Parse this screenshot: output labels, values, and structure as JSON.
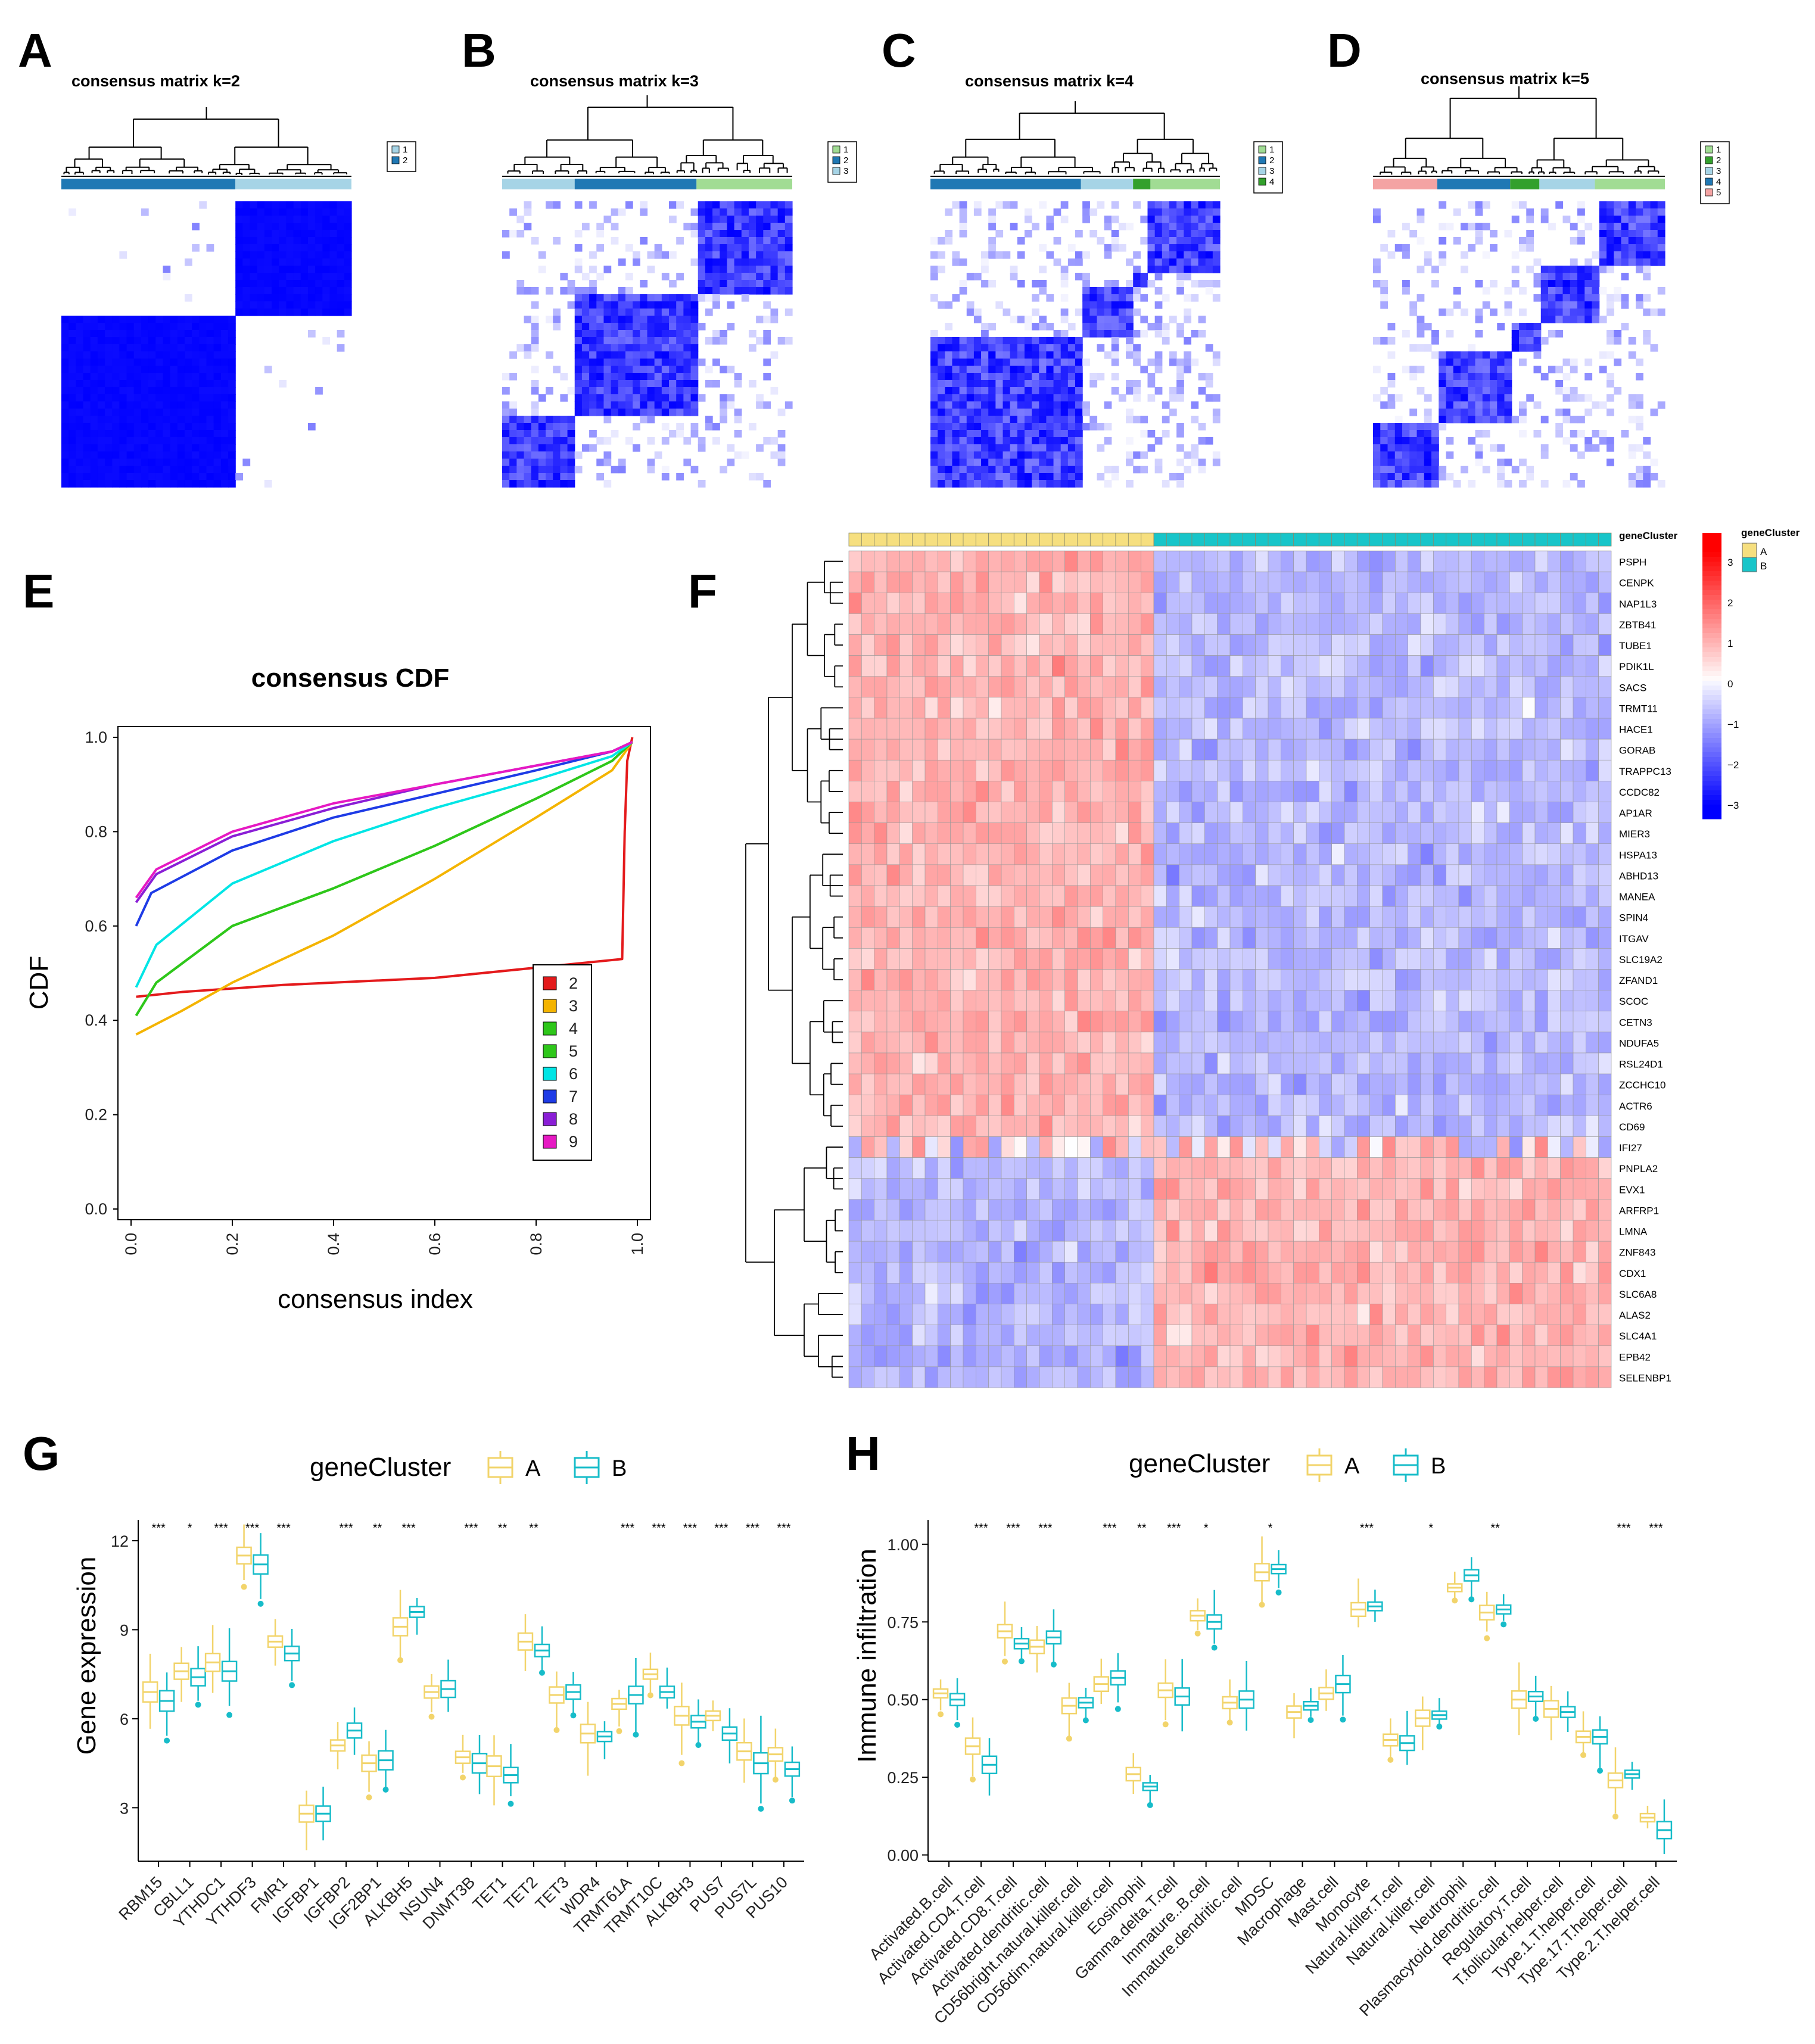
{
  "panels": {
    "A": "A",
    "B": "B",
    "C": "C",
    "D": "D",
    "E": "E",
    "F": "F",
    "G": "G",
    "H": "H"
  },
  "chart_data": [
    {
      "panel": "A",
      "type": "heatmap",
      "title": "consensus matrix k=2",
      "legend": [
        "1",
        "2"
      ],
      "cluster_colors": [
        "#a6d4e6",
        "#1f78b4"
      ],
      "cluster_sizes": [
        140,
        90
      ],
      "cluster_order": [
        2,
        1
      ]
    },
    {
      "panel": "B",
      "type": "heatmap",
      "title": "consensus matrix k=3",
      "legend": [
        "1",
        "2",
        "3"
      ],
      "cluster_colors": [
        "#a1dc94",
        "#1f78b4",
        "#a6d4e6"
      ],
      "cluster_order": [
        3,
        2,
        1
      ]
    },
    {
      "panel": "C",
      "type": "heatmap",
      "title": "consensus matrix k=4",
      "legend": [
        "1",
        "2",
        "3",
        "4"
      ],
      "cluster_colors": [
        "#a1dc94",
        "#1f78b4",
        "#a6d4e6",
        "#33a02c"
      ],
      "cluster_order": [
        2,
        3,
        4,
        1
      ]
    },
    {
      "panel": "D",
      "type": "heatmap",
      "title": "consensus matrix k=5",
      "legend": [
        "1",
        "2",
        "3",
        "4",
        "5"
      ],
      "cluster_colors": [
        "#a1dc94",
        "#33a02c",
        "#a6d4e6",
        "#1f78b4",
        "#f4a3a3"
      ],
      "cluster_order": [
        5,
        4,
        2,
        3,
        1
      ]
    },
    {
      "panel": "E",
      "type": "line",
      "title": "consensus CDF",
      "xlabel": "consensus index",
      "ylabel": "CDF",
      "xlim": [
        0,
        1
      ],
      "ylim": [
        0,
        1
      ],
      "xticks": [
        "0.0",
        "0.2",
        "0.4",
        "0.6",
        "0.8",
        "1.0"
      ],
      "yticks": [
        "0.0",
        "0.2",
        "0.4",
        "0.6",
        "0.8",
        "1.0"
      ],
      "legend_position": "bottom-right",
      "series": [
        {
          "name": "2",
          "color": "#e41a1c",
          "x": [
            0.01,
            0.1,
            0.3,
            0.6,
            0.97,
            0.975,
            0.98,
            0.99
          ],
          "y": [
            0.45,
            0.46,
            0.475,
            0.49,
            0.53,
            0.8,
            0.95,
            1.0
          ]
        },
        {
          "name": "3",
          "color": "#f4b400",
          "x": [
            0.01,
            0.1,
            0.2,
            0.4,
            0.6,
            0.8,
            0.95,
            0.99
          ],
          "y": [
            0.37,
            0.42,
            0.48,
            0.58,
            0.7,
            0.83,
            0.93,
            0.99
          ]
        },
        {
          "name": "4",
          "color": "#2ec71a",
          "x": [
            0.01,
            0.05,
            0.2,
            0.4,
            0.6,
            0.8,
            0.95,
            0.99
          ],
          "y": [
            0.41,
            0.48,
            0.6,
            0.68,
            0.77,
            0.87,
            0.95,
            0.99
          ]
        },
        {
          "name": "5",
          "color": "#2ec71a",
          "x": [
            0.01,
            0.05,
            0.2,
            0.4,
            0.6,
            0.8,
            0.95,
            0.99
          ],
          "y": [
            0.41,
            0.48,
            0.6,
            0.68,
            0.77,
            0.87,
            0.95,
            0.99
          ]
        },
        {
          "name": "6",
          "color": "#00e5e5",
          "x": [
            0.01,
            0.05,
            0.2,
            0.4,
            0.6,
            0.8,
            0.95,
            0.99
          ],
          "y": [
            0.47,
            0.56,
            0.69,
            0.78,
            0.85,
            0.91,
            0.96,
            0.99
          ]
        },
        {
          "name": "7",
          "color": "#1e3be6",
          "x": [
            0.01,
            0.04,
            0.2,
            0.4,
            0.6,
            0.8,
            0.95,
            0.99
          ],
          "y": [
            0.6,
            0.67,
            0.76,
            0.83,
            0.88,
            0.93,
            0.97,
            0.99
          ]
        },
        {
          "name": "8",
          "color": "#8a1ed6",
          "x": [
            0.01,
            0.05,
            0.2,
            0.4,
            0.6,
            0.8,
            0.95,
            0.99
          ],
          "y": [
            0.65,
            0.71,
            0.79,
            0.85,
            0.9,
            0.94,
            0.97,
            0.99
          ]
        },
        {
          "name": "9",
          "color": "#e619c3",
          "x": [
            0.01,
            0.05,
            0.2,
            0.4,
            0.6,
            0.8,
            0.95,
            0.99
          ],
          "y": [
            0.66,
            0.72,
            0.8,
            0.86,
            0.9,
            0.94,
            0.97,
            0.99
          ]
        }
      ]
    },
    {
      "panel": "F",
      "type": "heatmap",
      "legend_title": "geneCluster",
      "cluster_labels": [
        "A",
        "B"
      ],
      "cluster_colors": [
        "#f6df7f",
        "#18c5c9"
      ],
      "scale_ticks": [
        "3",
        "2",
        "1",
        "0",
        "−1",
        "−2",
        "−3"
      ],
      "genes_up_in_A": [
        "PSPH",
        "CENPK",
        "NAP1L3",
        "ZBTB41",
        "TUBE1",
        "PDIK1L",
        "SACS",
        "TRMT11",
        "HACE1",
        "GORAB",
        "TRAPPC13",
        "CCDC82",
        "AP1AR",
        "MIER3",
        "HSPA13",
        "ABHD13",
        "MANEA",
        "SPIN4",
        "ITGAV",
        "SLC19A2",
        "ZFAND1",
        "SCOC",
        "CETN3",
        "NDUFA5",
        "RSL24D1",
        "ZCCHC10",
        "ACTR6",
        "CD69"
      ],
      "genes_up_in_B": [
        "IFI27",
        "PNPLA2",
        "EVX1",
        "ARFRP1",
        "LMNA",
        "ZNF843",
        "CDX1",
        "SLC6A8",
        "ALAS2",
        "SLC4A1",
        "EPB42",
        "SELENBP1"
      ],
      "n_samples_A": 24,
      "n_samples_B": 36
    },
    {
      "panel": "G",
      "type": "box",
      "ylabel": "Gene expression",
      "legend_title": "geneCluster",
      "legend": [
        "A",
        "B"
      ],
      "colors": [
        "#f2d46b",
        "#17bcc9"
      ],
      "ylim": [
        1.2,
        12.3
      ],
      "yticks": [
        "3",
        "6",
        "9",
        "12"
      ],
      "categories": [
        "RBM15",
        "CBLL1",
        "YTHDC1",
        "YTHDF3",
        "FMR1",
        "IGFBP1",
        "IGFBP2",
        "IGF2BP1",
        "ALKBH5",
        "NSUN4",
        "DNMT3B",
        "TET1",
        "TET2",
        "TET3",
        "WDR4",
        "TRMT61A",
        "TRMT10C",
        "ALKBH3",
        "PUS7",
        "PUS7L",
        "PUS10"
      ],
      "significance": [
        "***",
        "*",
        "***",
        "***",
        "***",
        "",
        "***",
        "**",
        "***",
        "",
        "***",
        "**",
        "**",
        "",
        "",
        "***",
        "***",
        "***",
        "***",
        "***",
        "***"
      ],
      "medians_A": [
        6.9,
        7.6,
        7.9,
        11.5,
        8.6,
        2.8,
        5.1,
        4.5,
        9.1,
        6.9,
        4.7,
        4.4,
        8.6,
        6.8,
        5.5,
        6.5,
        7.5,
        6.1,
        6.1,
        4.9,
        4.8
      ],
      "medians_B": [
        6.6,
        7.4,
        7.6,
        11.2,
        8.2,
        2.8,
        5.6,
        4.6,
        9.6,
        7.0,
        4.5,
        4.1,
        8.3,
        6.9,
        5.4,
        6.8,
        6.9,
        5.9,
        5.5,
        4.5,
        4.3
      ]
    },
    {
      "panel": "H",
      "type": "box",
      "ylabel": "Immune infiltration",
      "legend_title": "geneCluster",
      "legend": [
        "A",
        "B"
      ],
      "colors": [
        "#f2d46b",
        "#17bcc9"
      ],
      "ylim": [
        -0.02,
        1.04
      ],
      "yticks": [
        "0.00",
        "0.25",
        "0.50",
        "0.75",
        "1.00"
      ],
      "categories": [
        "Activated.B.cell",
        "Activated.CD4.T.cell",
        "Activated.CD8.T.cell",
        "Activated.dendritic.cell",
        "CD56bright.natural.killer.cell",
        "CD56dim.natural.killer.cell",
        "Eosinophil",
        "Gamma.delta.T.cell",
        "Immature..B.cell",
        "Immature.dendritic.cell",
        "MDSC",
        "Macrophage",
        "Mast.cell",
        "Monocyte",
        "Natural.killer.T.cell",
        "Natural.killer.cell",
        "Neutrophil",
        "Plasmacytoid.dendritic.cell",
        "Regulatory.T.cell",
        "T.follicular.helper.cell",
        "Type.1.T.helper.cell",
        "Type.17.T.helper.cell",
        "Type.2.T.helper.cell"
      ],
      "significance": [
        "",
        "***",
        "***",
        "***",
        "",
        "***",
        "**",
        "***",
        "*",
        "",
        "*",
        "",
        "",
        "***",
        "",
        "*",
        "",
        "**",
        "",
        "",
        "",
        "***",
        "***"
      ],
      "medians_A": [
        0.52,
        0.35,
        0.72,
        0.67,
        0.48,
        0.55,
        0.26,
        0.53,
        0.77,
        0.49,
        0.91,
        0.46,
        0.52,
        0.79,
        0.37,
        0.44,
        0.86,
        0.78,
        0.5,
        0.47,
        0.38,
        0.24,
        0.12
      ],
      "medians_B": [
        0.5,
        0.29,
        0.68,
        0.7,
        0.49,
        0.57,
        0.22,
        0.51,
        0.75,
        0.5,
        0.92,
        0.48,
        0.55,
        0.8,
        0.36,
        0.45,
        0.9,
        0.79,
        0.51,
        0.46,
        0.38,
        0.26,
        0.08
      ]
    }
  ]
}
